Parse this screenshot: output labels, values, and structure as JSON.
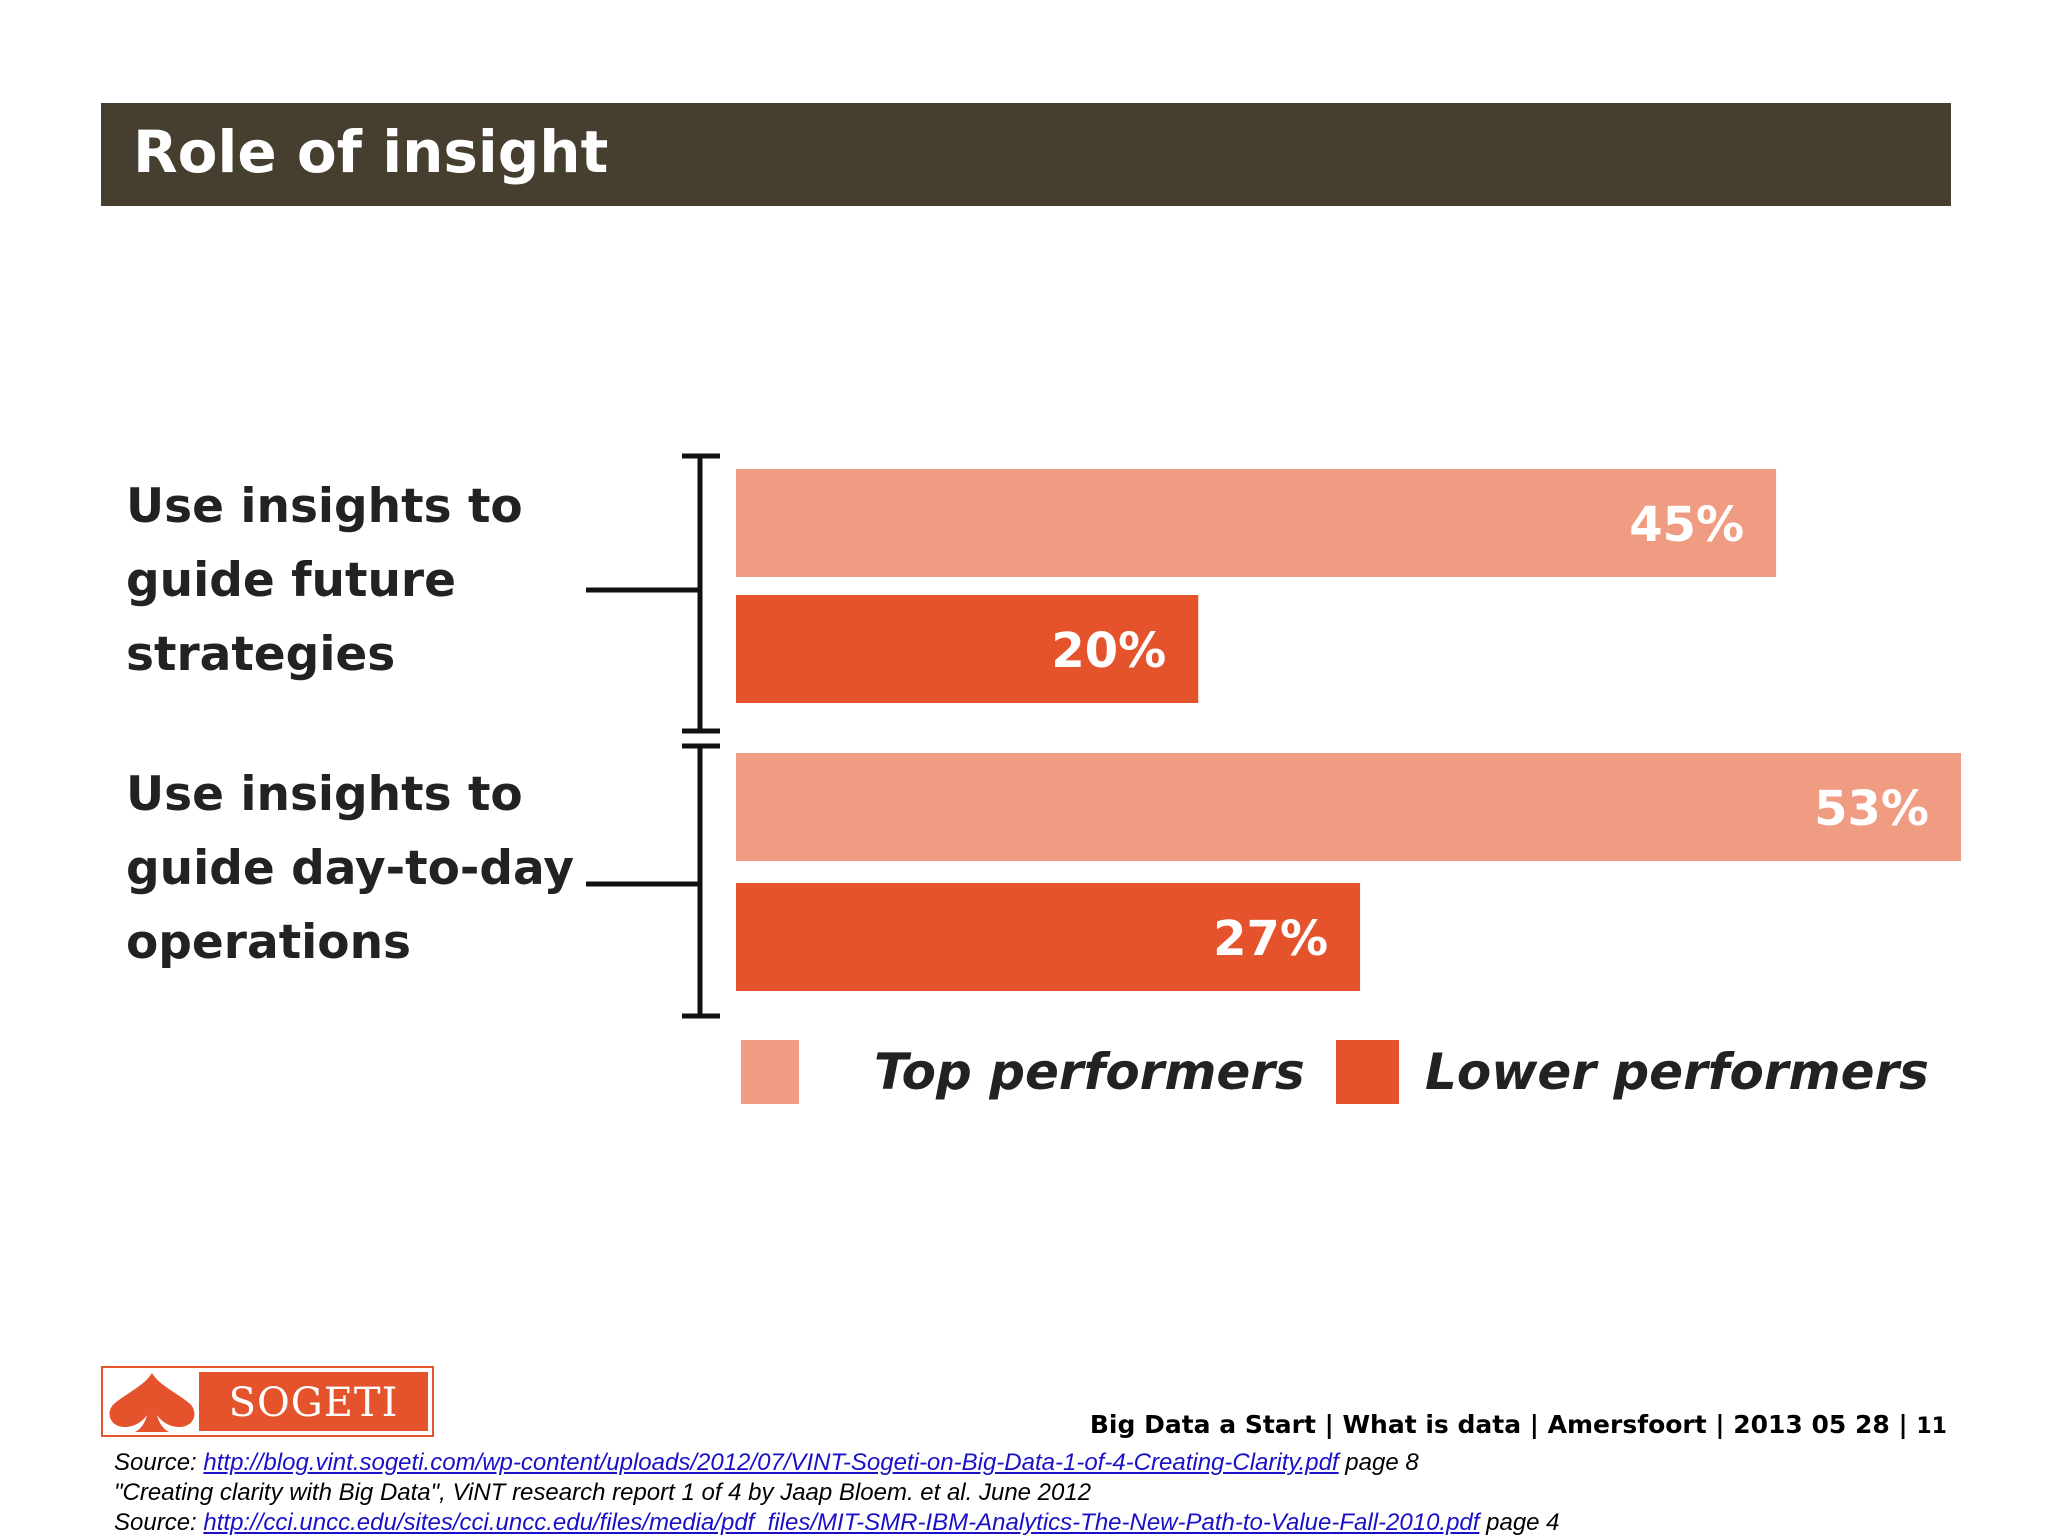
{
  "slide": {
    "title": "Role of insight"
  },
  "chart_data": {
    "type": "bar",
    "orientation": "horizontal",
    "categories": [
      "Use insights to guide future strategies",
      "Use insights to guide day-to-day operations"
    ],
    "series": [
      {
        "name": "Top performers",
        "values": [
          45,
          53
        ],
        "labels": [
          "45%",
          "53%"
        ]
      },
      {
        "name": "Lower performers",
        "values": [
          20,
          27
        ],
        "labels": [
          "20%",
          "27%"
        ]
      }
    ],
    "colors": {
      "top": "#ef9c83",
      "lower": "#e4532c"
    },
    "xlim": [
      0,
      53
    ],
    "grid": false,
    "legend_position": "bottom"
  },
  "footer": {
    "logo_text": "SOGETI",
    "meta_line": "Big Data a Start | What is data | Amersfoort | 2013 05 28 |",
    "page_number": "11",
    "source1_prefix": "Source: ",
    "source1_url": "http://blog.vint.sogeti.com/wp-content/uploads/2012/07/VINT-Sogeti-on-Big-Data-1-of-4-Creating-Clarity.pdf",
    "source1_suffix": " page 8",
    "citation": "\"Creating clarity with Big Data\", ViNT research report 1 of 4 by Jaap Bloem. et al. June 2012",
    "source2_prefix": "Source: ",
    "source2_url": "http://cci.uncc.edu/sites/cci.uncc.edu/files/media/pdf_files/MIT-SMR-IBM-Analytics-The-New-Path-to-Value-Fall-2010.pdf",
    "source2_suffix": " page 4"
  }
}
